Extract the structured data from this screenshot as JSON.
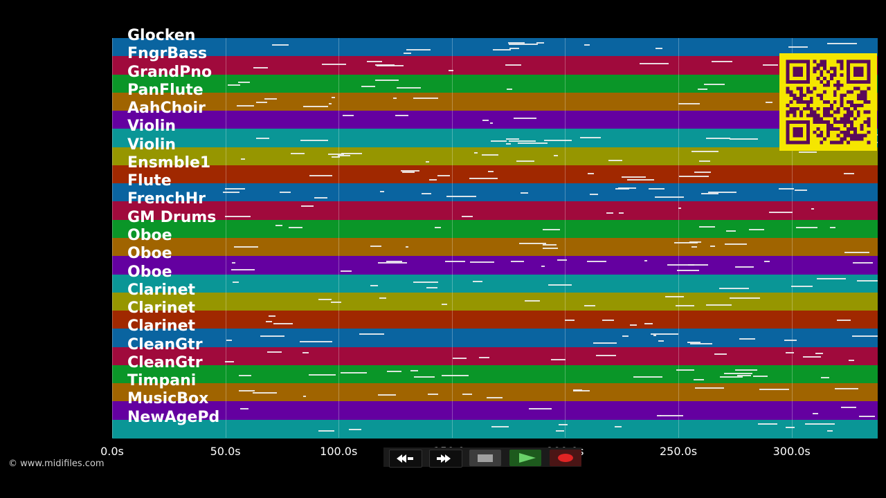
{
  "colors": {
    "track_palette": [
      "#0a64a0",
      "#a00a3c",
      "#0a9628",
      "#a06400",
      "#6400a0",
      "#0a9696",
      "#969600",
      "#a02800"
    ],
    "background": "#000000",
    "notes": "#f2f2f2",
    "qr_fg": "#5a0a5a",
    "qr_bg": "#f5e600"
  },
  "tracks": [
    {
      "name": "Glocken"
    },
    {
      "name": "FngrBass"
    },
    {
      "name": "GrandPno"
    },
    {
      "name": "PanFlute"
    },
    {
      "name": "AahChoir"
    },
    {
      "name": "Violin"
    },
    {
      "name": "Violin"
    },
    {
      "name": "Ensmble1"
    },
    {
      "name": "Flute"
    },
    {
      "name": "FrenchHr"
    },
    {
      "name": "GM Drums"
    },
    {
      "name": "Oboe"
    },
    {
      "name": "Oboe"
    },
    {
      "name": "Oboe"
    },
    {
      "name": "Clarinet"
    },
    {
      "name": "Clarinet"
    },
    {
      "name": "Clarinet"
    },
    {
      "name": "CleanGtr"
    },
    {
      "name": "CleanGtr"
    },
    {
      "name": "Timpani"
    },
    {
      "name": "MusicBox"
    },
    {
      "name": "NewAgePd"
    }
  ],
  "timeline": {
    "ticks": [
      "0.0s",
      "50.0s",
      "100.0s",
      "150.0s",
      "200.0s",
      "250.0s",
      "300.0s"
    ],
    "tick_values": [
      0,
      50,
      100,
      150,
      200,
      250,
      300
    ],
    "max_seconds": 338
  },
  "transport": {
    "buttons": [
      {
        "name": "rewind-button",
        "icon": "rewind-icon",
        "glyph": "◀◀"
      },
      {
        "name": "fast-forward-button",
        "icon": "fast-forward-icon",
        "glyph": "▶▶"
      },
      {
        "name": "stop-button",
        "icon": "stop-icon",
        "glyph": "■"
      },
      {
        "name": "play-button",
        "icon": "play-icon",
        "glyph": "▶"
      },
      {
        "name": "record-button",
        "icon": "record-icon",
        "glyph": "●"
      }
    ]
  },
  "copyright": "© www.midifiles.com"
}
